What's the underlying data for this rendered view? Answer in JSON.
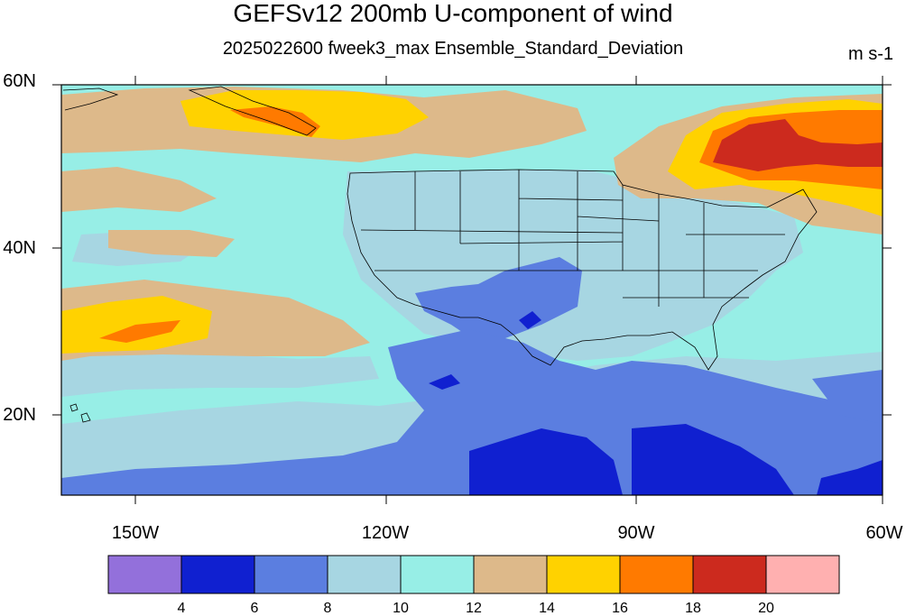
{
  "title": "GEFSv12 200mb U-component of wind",
  "subtitle": "2025022600 fweek3_max Ensemble_Standard_Deviation",
  "units": "m s-1",
  "lat_ticks": [
    "60N",
    "40N",
    "20N"
  ],
  "lon_ticks": [
    "150W",
    "120W",
    "90W",
    "60W"
  ],
  "colorbar": {
    "labels": [
      "4",
      "6",
      "8",
      "10",
      "12",
      "14",
      "16",
      "18",
      "20"
    ],
    "colors": [
      "#9370db",
      "#1020d0",
      "#5b7ee0",
      "#a7d6e2",
      "#97eee6",
      "#ddb98a",
      "#ffd200",
      "#ff7a00",
      "#cc2a1e",
      "#ffb0b0"
    ]
  },
  "colors": {
    "ocean_base": "#97eee6",
    "lightblue": "#a7d6e2",
    "midblue": "#5b7ee0",
    "darkblue": "#1020d0",
    "tan": "#ddb98a",
    "yellow": "#ffd200",
    "orange": "#ff7a00",
    "red": "#cc2a1e"
  }
}
